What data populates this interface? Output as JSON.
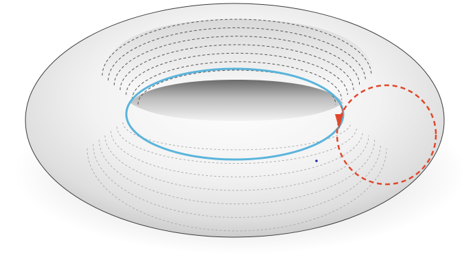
{
  "diagram": {
    "subject": "torus",
    "colors": {
      "background": "#ffffff",
      "surface_light": "#ffffff",
      "surface_dark": "#cfcfcf",
      "outline": "#3a3a3a",
      "contour": "#555555",
      "contour_under": "#a8a8a8",
      "inner_circle": "#5ab4dc",
      "meridian_circle": "#e0472b",
      "arrow": "#e0472b",
      "dot": "#2a2aa8"
    },
    "upper_contour_count": 7,
    "lower_contour_count": 7
  }
}
